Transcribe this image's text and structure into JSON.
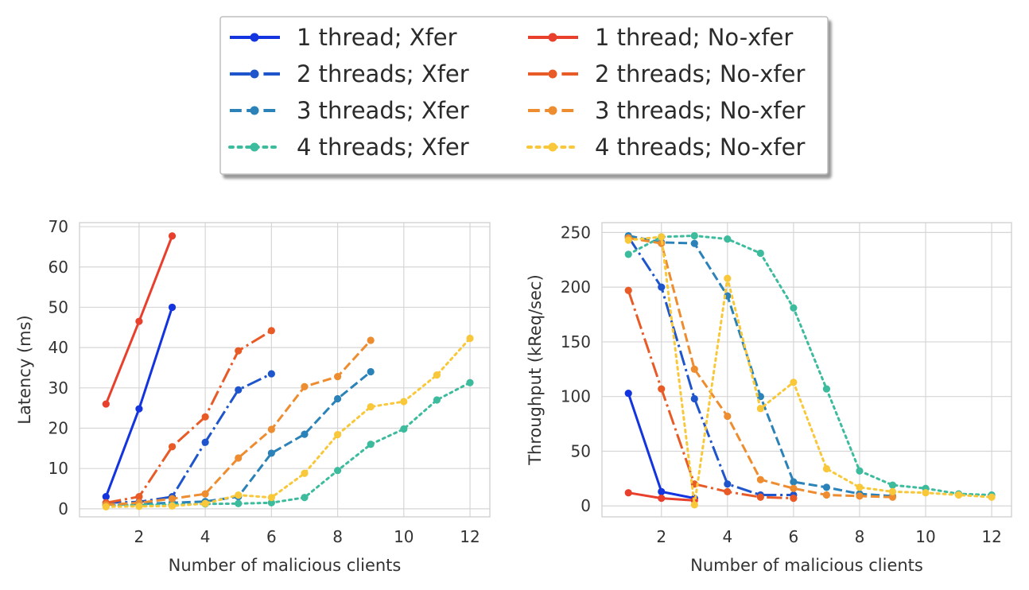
{
  "series_styles": [
    {
      "key": "xfer1",
      "name": "1 thread; Xfer",
      "color": "#1434e0",
      "dash": "solid"
    },
    {
      "key": "xfer2",
      "name": "2 threads; Xfer",
      "color": "#1f55cc",
      "dash": "dashdot"
    },
    {
      "key": "xfer3",
      "name": "3 threads; Xfer",
      "color": "#2a82b8",
      "dash": "dashed"
    },
    {
      "key": "xfer4",
      "name": "4 threads; Xfer",
      "color": "#3dbb9d",
      "dash": "dotted"
    },
    {
      "key": "noxfer1",
      "name": "1 thread; No-xfer",
      "color": "#e8402c",
      "dash": "solid"
    },
    {
      "key": "noxfer2",
      "name": "2 threads; No-xfer",
      "color": "#e85a26",
      "dash": "dashdot"
    },
    {
      "key": "noxfer3",
      "name": "3 threads; No-xfer",
      "color": "#ee8c30",
      "dash": "dashed"
    },
    {
      "key": "noxfer4",
      "name": "4 threads; No-xfer",
      "color": "#f8c83a",
      "dash": "dotted"
    }
  ],
  "legend": {
    "position": "top-center",
    "columns": [
      [
        "1 thread; Xfer",
        "2 threads; Xfer",
        "3 threads; Xfer",
        "4 threads; Xfer"
      ],
      [
        "1 thread; No-xfer",
        "2 threads; No-xfer",
        "3 threads; No-xfer",
        "4 threads; No-xfer"
      ]
    ]
  },
  "chart_data": [
    {
      "type": "line",
      "title": "",
      "xlabel": "Number of malicious clients",
      "ylabel": "Latency (ms)",
      "xlim": [
        0.2,
        12.6
      ],
      "ylim": [
        -2,
        71
      ],
      "xticks": [
        2,
        4,
        6,
        8,
        10,
        12
      ],
      "yticks": [
        0,
        10,
        20,
        30,
        40,
        50,
        60,
        70
      ],
      "grid": true,
      "series": [
        {
          "name": "1 thread; Xfer",
          "x": [
            1,
            2,
            3
          ],
          "y": [
            3,
            24.8,
            50
          ]
        },
        {
          "name": "2 threads; Xfer",
          "x": [
            1,
            2,
            3,
            4,
            5,
            6
          ],
          "y": [
            1.5,
            1.7,
            3,
            16.5,
            29.5,
            33.5
          ]
        },
        {
          "name": "3 threads; Xfer",
          "x": [
            1,
            2,
            3,
            4,
            5,
            6,
            7,
            8,
            9
          ],
          "y": [
            1,
            1.2,
            1.5,
            1.8,
            3,
            13.8,
            18.5,
            27.3,
            34
          ]
        },
        {
          "name": "4 threads; Xfer",
          "x": [
            1,
            2,
            3,
            4,
            5,
            6,
            7,
            8,
            9,
            10,
            11,
            12
          ],
          "y": [
            0.8,
            1,
            1,
            1.2,
            1.3,
            1.5,
            2.8,
            9.5,
            16,
            19.8,
            27,
            31.3
          ]
        },
        {
          "name": "1 thread; No-xfer",
          "x": [
            1,
            2,
            3
          ],
          "y": [
            26,
            46.5,
            67.7
          ]
        },
        {
          "name": "2 threads; No-xfer",
          "x": [
            1,
            2,
            3,
            4,
            5,
            6
          ],
          "y": [
            1.5,
            3,
            15.4,
            22.8,
            39.2,
            44.2
          ]
        },
        {
          "name": "3 threads; No-xfer",
          "x": [
            1,
            2,
            3,
            4,
            5,
            6,
            7,
            8,
            9
          ],
          "y": [
            1,
            1.5,
            2.5,
            3.7,
            12.6,
            19.7,
            30.3,
            32.8,
            41.8
          ]
        },
        {
          "name": "4 threads; No-xfer",
          "x": [
            1,
            2,
            3,
            4,
            5,
            6,
            7,
            8,
            9,
            10,
            11,
            12
          ],
          "y": [
            0.5,
            0.6,
            0.7,
            1.3,
            3.4,
            2.8,
            8.8,
            18.4,
            25.3,
            26.6,
            33.2,
            42.3
          ]
        }
      ]
    },
    {
      "type": "line",
      "title": "",
      "xlabel": "Number of malicious clients",
      "ylabel": "Throughput (kReq/sec)",
      "xlim": [
        0.2,
        12.6
      ],
      "ylim": [
        -10,
        259
      ],
      "xticks": [
        2,
        4,
        6,
        8,
        10,
        12
      ],
      "yticks": [
        0,
        50,
        100,
        150,
        200,
        250
      ],
      "grid": true,
      "series": [
        {
          "name": "1 thread; Xfer",
          "x": [
            1,
            2,
            3
          ],
          "y": [
            103,
            13,
            7
          ]
        },
        {
          "name": "2 threads; Xfer",
          "x": [
            1,
            2,
            3,
            4,
            5,
            6
          ],
          "y": [
            246,
            200,
            98,
            20,
            10,
            10
          ]
        },
        {
          "name": "3 threads; Xfer",
          "x": [
            1,
            2,
            3,
            4,
            5,
            6,
            7,
            8,
            9
          ],
          "y": [
            247,
            241,
            240,
            192,
            100,
            22,
            17,
            11,
            9
          ]
        },
        {
          "name": "4 threads; Xfer",
          "x": [
            1,
            2,
            3,
            4,
            5,
            6,
            7,
            8,
            9,
            10,
            11,
            12
          ],
          "y": [
            230,
            246,
            247,
            244,
            231,
            181,
            107,
            32,
            19,
            16,
            11,
            10
          ]
        },
        {
          "name": "1 thread; No-xfer",
          "x": [
            1,
            2,
            3
          ],
          "y": [
            12,
            7,
            5
          ]
        },
        {
          "name": "2 threads; No-xfer",
          "x": [
            1,
            2,
            3,
            4,
            5,
            6
          ],
          "y": [
            197,
            107,
            20,
            13,
            8,
            7
          ]
        },
        {
          "name": "3 threads; No-xfer",
          "x": [
            1,
            2,
            3,
            4,
            5,
            6,
            7,
            8,
            9
          ],
          "y": [
            245,
            240,
            125,
            82,
            24,
            16,
            10,
            9,
            8
          ]
        },
        {
          "name": "4 threads; No-xfer",
          "x": [
            1,
            2,
            3,
            4,
            5,
            6,
            7,
            8,
            9,
            10,
            11,
            12
          ],
          "y": [
            243,
            246,
            1,
            208,
            89,
            113,
            34,
            17,
            13,
            12,
            10,
            8
          ]
        }
      ]
    }
  ]
}
